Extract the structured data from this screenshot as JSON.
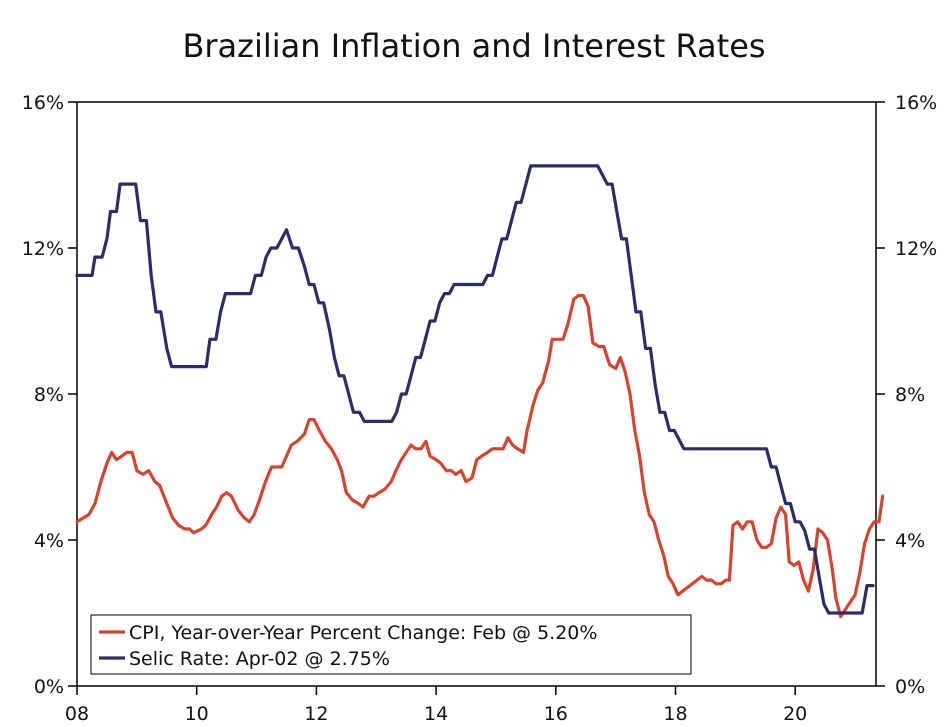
{
  "chart_data": {
    "type": "line",
    "title": "Brazilian Inflation and Interest Rates",
    "xlabel": "",
    "ylabel": "",
    "xlim": [
      2008,
      2021.35
    ],
    "ylim": [
      0,
      16
    ],
    "x_ticks": [
      {
        "value": 2008,
        "label": "08"
      },
      {
        "value": 2010,
        "label": "10"
      },
      {
        "value": 2012,
        "label": "12"
      },
      {
        "value": 2014,
        "label": "14"
      },
      {
        "value": 2016,
        "label": "16"
      },
      {
        "value": 2018,
        "label": "18"
      },
      {
        "value": 2020,
        "label": "20"
      }
    ],
    "y_ticks_left": [
      {
        "value": 0,
        "label": "0%"
      },
      {
        "value": 4,
        "label": "4%"
      },
      {
        "value": 8,
        "label": "8%"
      },
      {
        "value": 12,
        "label": "12%"
      },
      {
        "value": 16,
        "label": "16%"
      }
    ],
    "y_ticks_right": [
      {
        "value": 0,
        "label": "0%"
      },
      {
        "value": 4,
        "label": "4%"
      },
      {
        "value": 8,
        "label": "8%"
      },
      {
        "value": 12,
        "label": "12%"
      },
      {
        "value": 16,
        "label": "16%"
      }
    ],
    "grid": false,
    "legend_position": "bottom-left",
    "series": [
      {
        "name": "CPI, Year-over-Year Percent Change: Feb @ 5.20%",
        "color": "#d6442e",
        "points": [
          [
            2008.0,
            4.5
          ],
          [
            2008.1,
            4.6
          ],
          [
            2008.2,
            4.7
          ],
          [
            2008.3,
            5.0
          ],
          [
            2008.4,
            5.6
          ],
          [
            2008.5,
            6.1
          ],
          [
            2008.58,
            6.4
          ],
          [
            2008.66,
            6.2
          ],
          [
            2008.75,
            6.3
          ],
          [
            2008.83,
            6.4
          ],
          [
            2008.92,
            6.4
          ],
          [
            2009.0,
            5.9
          ],
          [
            2009.1,
            5.8
          ],
          [
            2009.2,
            5.9
          ],
          [
            2009.3,
            5.6
          ],
          [
            2009.38,
            5.5
          ],
          [
            2009.5,
            5.0
          ],
          [
            2009.6,
            4.6
          ],
          [
            2009.7,
            4.4
          ],
          [
            2009.8,
            4.3
          ],
          [
            2009.88,
            4.3
          ],
          [
            2009.95,
            4.2
          ],
          [
            2010.08,
            4.3
          ],
          [
            2010.15,
            4.4
          ],
          [
            2010.25,
            4.7
          ],
          [
            2010.33,
            4.9
          ],
          [
            2010.42,
            5.2
          ],
          [
            2010.5,
            5.3
          ],
          [
            2010.58,
            5.2
          ],
          [
            2010.7,
            4.8
          ],
          [
            2010.8,
            4.6
          ],
          [
            2010.88,
            4.5
          ],
          [
            2010.96,
            4.7
          ],
          [
            2011.05,
            5.1
          ],
          [
            2011.15,
            5.6
          ],
          [
            2011.25,
            6.0
          ],
          [
            2011.33,
            6.0
          ],
          [
            2011.42,
            6.0
          ],
          [
            2011.5,
            6.3
          ],
          [
            2011.58,
            6.6
          ],
          [
            2011.68,
            6.7
          ],
          [
            2011.8,
            6.9
          ],
          [
            2011.88,
            7.3
          ],
          [
            2011.96,
            7.3
          ],
          [
            2012.05,
            7.0
          ],
          [
            2012.15,
            6.7
          ],
          [
            2012.25,
            6.5
          ],
          [
            2012.35,
            6.2
          ],
          [
            2012.42,
            5.9
          ],
          [
            2012.5,
            5.3
          ],
          [
            2012.6,
            5.1
          ],
          [
            2012.7,
            5.0
          ],
          [
            2012.78,
            4.9
          ],
          [
            2012.88,
            5.2
          ],
          [
            2012.96,
            5.2
          ],
          [
            2013.05,
            5.3
          ],
          [
            2013.15,
            5.4
          ],
          [
            2013.25,
            5.6
          ],
          [
            2013.33,
            5.9
          ],
          [
            2013.42,
            6.2
          ],
          [
            2013.5,
            6.4
          ],
          [
            2013.58,
            6.6
          ],
          [
            2013.66,
            6.5
          ],
          [
            2013.75,
            6.5
          ],
          [
            2013.83,
            6.7
          ],
          [
            2013.9,
            6.3
          ],
          [
            2014.0,
            6.2
          ],
          [
            2014.08,
            6.1
          ],
          [
            2014.17,
            5.9
          ],
          [
            2014.25,
            5.9
          ],
          [
            2014.33,
            5.8
          ],
          [
            2014.42,
            5.9
          ],
          [
            2014.5,
            5.6
          ],
          [
            2014.6,
            5.7
          ],
          [
            2014.68,
            6.2
          ],
          [
            2014.76,
            6.3
          ],
          [
            2014.86,
            6.4
          ],
          [
            2014.94,
            6.5
          ],
          [
            2015.04,
            6.5
          ],
          [
            2015.12,
            6.5
          ],
          [
            2015.2,
            6.8
          ],
          [
            2015.28,
            6.6
          ],
          [
            2015.36,
            6.5
          ],
          [
            2015.46,
            6.4
          ],
          [
            2015.52,
            7.0
          ],
          [
            2015.62,
            7.7
          ],
          [
            2015.7,
            8.1
          ],
          [
            2015.78,
            8.3
          ],
          [
            2015.88,
            8.9
          ],
          [
            2015.94,
            9.5
          ],
          [
            2016.02,
            9.5
          ],
          [
            2016.12,
            9.5
          ],
          [
            2016.2,
            9.9
          ],
          [
            2016.3,
            10.6
          ],
          [
            2016.38,
            10.7
          ],
          [
            2016.46,
            10.7
          ],
          [
            2016.54,
            10.4
          ],
          [
            2016.62,
            9.4
          ],
          [
            2016.72,
            9.3
          ],
          [
            2016.8,
            9.3
          ],
          [
            2016.9,
            8.8
          ],
          [
            2017.0,
            8.7
          ],
          [
            2017.08,
            9.0
          ],
          [
            2017.16,
            8.6
          ],
          [
            2017.24,
            8.0
          ],
          [
            2017.32,
            7.0
          ],
          [
            2017.4,
            6.3
          ],
          [
            2017.48,
            5.3
          ],
          [
            2017.56,
            4.7
          ],
          [
            2017.64,
            4.5
          ],
          [
            2017.72,
            4.0
          ],
          [
            2017.8,
            3.6
          ],
          [
            2017.88,
            3.0
          ],
          [
            2017.96,
            2.8
          ],
          [
            2018.04,
            2.5
          ],
          [
            2018.12,
            2.6
          ],
          [
            2018.2,
            2.7
          ],
          [
            2018.28,
            2.8
          ],
          [
            2018.36,
            2.9
          ],
          [
            2018.44,
            3.0
          ],
          [
            2018.52,
            2.9
          ],
          [
            2018.6,
            2.9
          ],
          [
            2018.68,
            2.8
          ],
          [
            2018.76,
            2.8
          ],
          [
            2018.84,
            2.9
          ],
          [
            2018.9,
            2.9
          ],
          [
            2018.96,
            4.4
          ],
          [
            2019.04,
            4.5
          ],
          [
            2019.12,
            4.3
          ],
          [
            2019.2,
            4.5
          ],
          [
            2019.28,
            4.5
          ],
          [
            2019.36,
            4.0
          ],
          [
            2019.44,
            3.8
          ],
          [
            2019.52,
            3.8
          ],
          [
            2019.6,
            3.9
          ],
          [
            2019.68,
            4.6
          ],
          [
            2019.76,
            4.9
          ],
          [
            2019.84,
            4.7
          ],
          [
            2019.9,
            3.4
          ],
          [
            2019.98,
            3.3
          ],
          [
            2020.06,
            3.4
          ],
          [
            2020.14,
            2.9
          ],
          [
            2020.22,
            2.6
          ],
          [
            2020.3,
            3.2
          ],
          [
            2020.38,
            4.3
          ],
          [
            2020.46,
            4.2
          ],
          [
            2020.54,
            4.0
          ],
          [
            2020.62,
            3.2
          ],
          [
            2020.68,
            2.4
          ],
          [
            2020.76,
            1.9
          ],
          [
            2020.84,
            2.1
          ],
          [
            2020.92,
            2.3
          ],
          [
            2021.0,
            2.5
          ],
          [
            2021.08,
            3.1
          ],
          [
            2021.16,
            3.9
          ],
          [
            2021.24,
            4.3
          ],
          [
            2021.32,
            4.5
          ],
          [
            2021.4,
            4.5
          ],
          [
            2021.46,
            5.2
          ]
        ]
      },
      {
        "name": "Selic Rate: Apr-02 @ 2.75%",
        "color": "#2b2c6a",
        "points": [
          [
            2008.0,
            11.25
          ],
          [
            2008.25,
            11.25
          ],
          [
            2008.3,
            11.75
          ],
          [
            2008.42,
            11.75
          ],
          [
            2008.5,
            12.25
          ],
          [
            2008.56,
            13.0
          ],
          [
            2008.66,
            13.0
          ],
          [
            2008.72,
            13.75
          ],
          [
            2008.98,
            13.75
          ],
          [
            2009.06,
            12.75
          ],
          [
            2009.16,
            12.75
          ],
          [
            2009.24,
            11.25
          ],
          [
            2009.32,
            10.25
          ],
          [
            2009.4,
            10.25
          ],
          [
            2009.5,
            9.25
          ],
          [
            2009.58,
            8.75
          ],
          [
            2010.16,
            8.75
          ],
          [
            2010.22,
            9.5
          ],
          [
            2010.32,
            9.5
          ],
          [
            2010.4,
            10.25
          ],
          [
            2010.48,
            10.75
          ],
          [
            2010.9,
            10.75
          ],
          [
            2010.98,
            11.25
          ],
          [
            2011.08,
            11.25
          ],
          [
            2011.16,
            11.75
          ],
          [
            2011.24,
            12.0
          ],
          [
            2011.34,
            12.0
          ],
          [
            2011.42,
            12.25
          ],
          [
            2011.5,
            12.5
          ],
          [
            2011.6,
            12.0
          ],
          [
            2011.7,
            12.0
          ],
          [
            2011.8,
            11.5
          ],
          [
            2011.88,
            11.0
          ],
          [
            2011.96,
            11.0
          ],
          [
            2012.04,
            10.5
          ],
          [
            2012.12,
            10.5
          ],
          [
            2012.22,
            9.75
          ],
          [
            2012.3,
            9.0
          ],
          [
            2012.38,
            8.5
          ],
          [
            2012.46,
            8.5
          ],
          [
            2012.54,
            8.0
          ],
          [
            2012.62,
            7.5
          ],
          [
            2012.72,
            7.5
          ],
          [
            2012.8,
            7.25
          ],
          [
            2013.26,
            7.25
          ],
          [
            2013.34,
            7.5
          ],
          [
            2013.42,
            8.0
          ],
          [
            2013.5,
            8.0
          ],
          [
            2013.58,
            8.5
          ],
          [
            2013.66,
            9.0
          ],
          [
            2013.74,
            9.0
          ],
          [
            2013.82,
            9.5
          ],
          [
            2013.9,
            10.0
          ],
          [
            2013.98,
            10.0
          ],
          [
            2014.06,
            10.5
          ],
          [
            2014.14,
            10.75
          ],
          [
            2014.22,
            10.75
          ],
          [
            2014.3,
            11.0
          ],
          [
            2014.78,
            11.0
          ],
          [
            2014.86,
            11.25
          ],
          [
            2014.94,
            11.25
          ],
          [
            2015.02,
            11.75
          ],
          [
            2015.1,
            12.25
          ],
          [
            2015.18,
            12.25
          ],
          [
            2015.26,
            12.75
          ],
          [
            2015.34,
            13.25
          ],
          [
            2015.42,
            13.25
          ],
          [
            2015.5,
            13.75
          ],
          [
            2015.58,
            14.25
          ],
          [
            2016.7,
            14.25
          ],
          [
            2016.78,
            14.0
          ],
          [
            2016.86,
            13.75
          ],
          [
            2016.94,
            13.75
          ],
          [
            2017.02,
            13.0
          ],
          [
            2017.1,
            12.25
          ],
          [
            2017.18,
            12.25
          ],
          [
            2017.26,
            11.25
          ],
          [
            2017.34,
            10.25
          ],
          [
            2017.42,
            10.25
          ],
          [
            2017.5,
            9.25
          ],
          [
            2017.58,
            9.25
          ],
          [
            2017.66,
            8.25
          ],
          [
            2017.74,
            7.5
          ],
          [
            2017.82,
            7.5
          ],
          [
            2017.9,
            7.0
          ],
          [
            2017.98,
            7.0
          ],
          [
            2018.06,
            6.75
          ],
          [
            2018.14,
            6.5
          ],
          [
            2019.36,
            6.5
          ],
          [
            2019.52,
            6.5
          ],
          [
            2019.6,
            6.0
          ],
          [
            2019.68,
            6.0
          ],
          [
            2019.76,
            5.5
          ],
          [
            2019.84,
            5.0
          ],
          [
            2019.92,
            5.0
          ],
          [
            2020.0,
            4.5
          ],
          [
            2020.08,
            4.5
          ],
          [
            2020.16,
            4.25
          ],
          [
            2020.24,
            3.75
          ],
          [
            2020.32,
            3.75
          ],
          [
            2020.4,
            3.0
          ],
          [
            2020.48,
            2.25
          ],
          [
            2020.56,
            2.0
          ],
          [
            2021.04,
            2.0
          ],
          [
            2021.12,
            2.0
          ],
          [
            2021.2,
            2.75
          ],
          [
            2021.3,
            2.75
          ]
        ]
      }
    ]
  }
}
